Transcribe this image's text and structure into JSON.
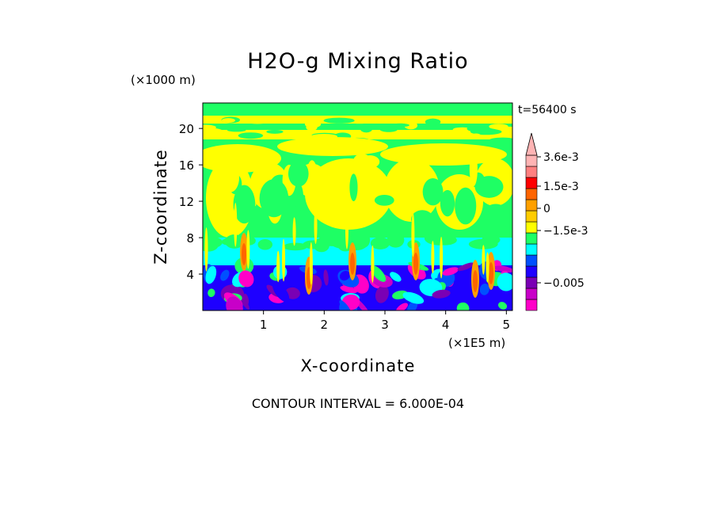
{
  "chart_data": {
    "type": "heatmap",
    "title": "H2O-g Mixing Ratio",
    "xlabel": "X-coordinate",
    "ylabel": "Z-coordinate",
    "x_unit": "(×1E5 m)",
    "y_unit": "(×1000 m)",
    "time_label": "t=56400 s",
    "contour_label": "CONTOUR INTERVAL = 6.000E-04",
    "xlim": [
      0,
      5.1
    ],
    "ylim": [
      0,
      22.8
    ],
    "x_ticks": [
      "1",
      "2",
      "3",
      "4",
      "5"
    ],
    "y_ticks": [
      "4",
      "8",
      "12",
      "16",
      "20"
    ],
    "grid": false,
    "colorbar": {
      "placement": "right",
      "labels": [
        "3.6e-3",
        "1.5e-3",
        "0",
        "−1.5e-3",
        "−0.005"
      ],
      "colors": [
        "#ff00c8",
        "#c800c8",
        "#7a00b4",
        "#1e00ff",
        "#0050ff",
        "#00ffff",
        "#1eff64",
        "#ffff00",
        "#ffcc00",
        "#ffa000",
        "#ff6400",
        "#ff0000",
        "#ff8080",
        "#ffb4b4"
      ]
    }
  }
}
